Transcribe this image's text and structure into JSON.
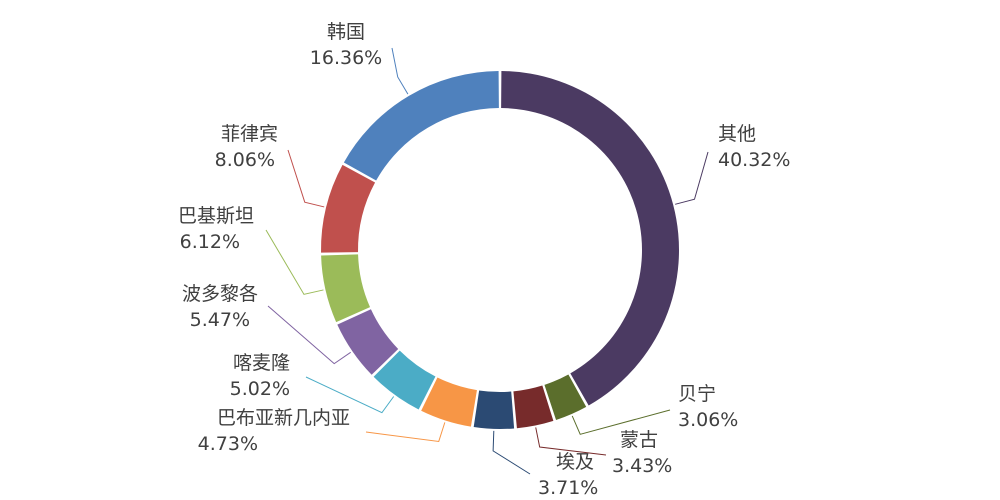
{
  "chart_data": {
    "type": "pie",
    "variant": "donut",
    "slices": [
      {
        "label": "其他",
        "value": 40.32,
        "pct_label": "40.32%",
        "color": "#4b3a62"
      },
      {
        "label": "贝宁",
        "value": 3.06,
        "pct_label": "3.06%",
        "color": "#5b6e2c"
      },
      {
        "label": "蒙古",
        "value": 3.43,
        "pct_label": "3.43%",
        "color": "#772b2b"
      },
      {
        "label": "埃及",
        "value": 3.71,
        "pct_label": "3.71%",
        "color": "#2b4a73"
      },
      {
        "label": "巴布亚新几内亚",
        "value": 4.73,
        "pct_label": "4.73%",
        "color": "#f79646"
      },
      {
        "label": "喀麦隆",
        "value": 5.02,
        "pct_label": "5.02%",
        "color": "#4bacc6"
      },
      {
        "label": "波多黎各",
        "value": 5.47,
        "pct_label": "5.47%",
        "color": "#8064a2"
      },
      {
        "label": "巴基斯坦",
        "value": 6.12,
        "pct_label": "6.12%",
        "color": "#9bbb59"
      },
      {
        "label": "菲律宾",
        "value": 8.06,
        "pct_label": "8.06%",
        "color": "#c0504d"
      },
      {
        "label": "韩国",
        "value": 16.36,
        "pct_label": "16.36%",
        "color": "#4f81bd"
      }
    ],
    "label_color": "#404040",
    "legend": "none"
  }
}
